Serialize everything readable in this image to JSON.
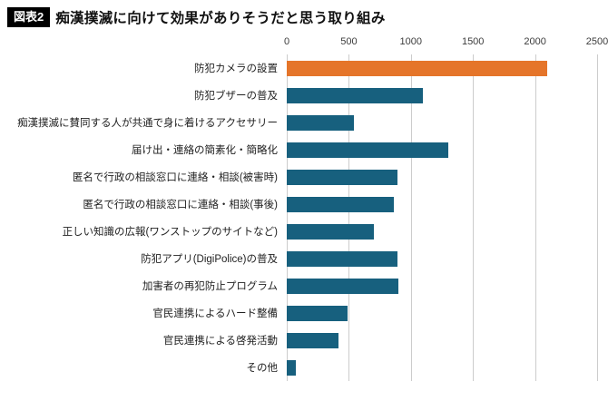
{
  "title": {
    "badge": "図表2",
    "text": "痴漢撲滅に向けて効果がありそうだと思う取り組み"
  },
  "chart_data": {
    "type": "bar",
    "orientation": "horizontal",
    "title": "痴漢撲滅に向けて効果がありそうだと思う取り組み",
    "categories": [
      "防犯カメラの設置",
      "防犯ブザーの普及",
      "痴漢撲滅に賛同する人が共通で身に着けるアクセサリー",
      "届け出・連絡の簡素化・簡略化",
      "匿名で行政の相談窓口に連絡・相談(被害時)",
      "匿名で行政の相談窓口に連絡・相談(事後)",
      "正しい知識の広報(ワンストップのサイトなど)",
      "防犯アプリ(DigiPolice)の普及",
      "加害者の再犯防止プログラム",
      "官民連携によるハード整備",
      "官民連携による啓発活動",
      "その他"
    ],
    "values": [
      2100,
      1100,
      540,
      1300,
      890,
      860,
      700,
      890,
      900,
      490,
      420,
      75
    ],
    "xlim": [
      0,
      2500
    ],
    "xticks": [
      0,
      500,
      1000,
      1500,
      2000,
      2500
    ],
    "grid": true,
    "legend": "none",
    "bar_colors": {
      "highlight": "#e5752a",
      "default": "#17607e"
    },
    "highlight_index": 0,
    "gridline_color": "#cccccc"
  }
}
